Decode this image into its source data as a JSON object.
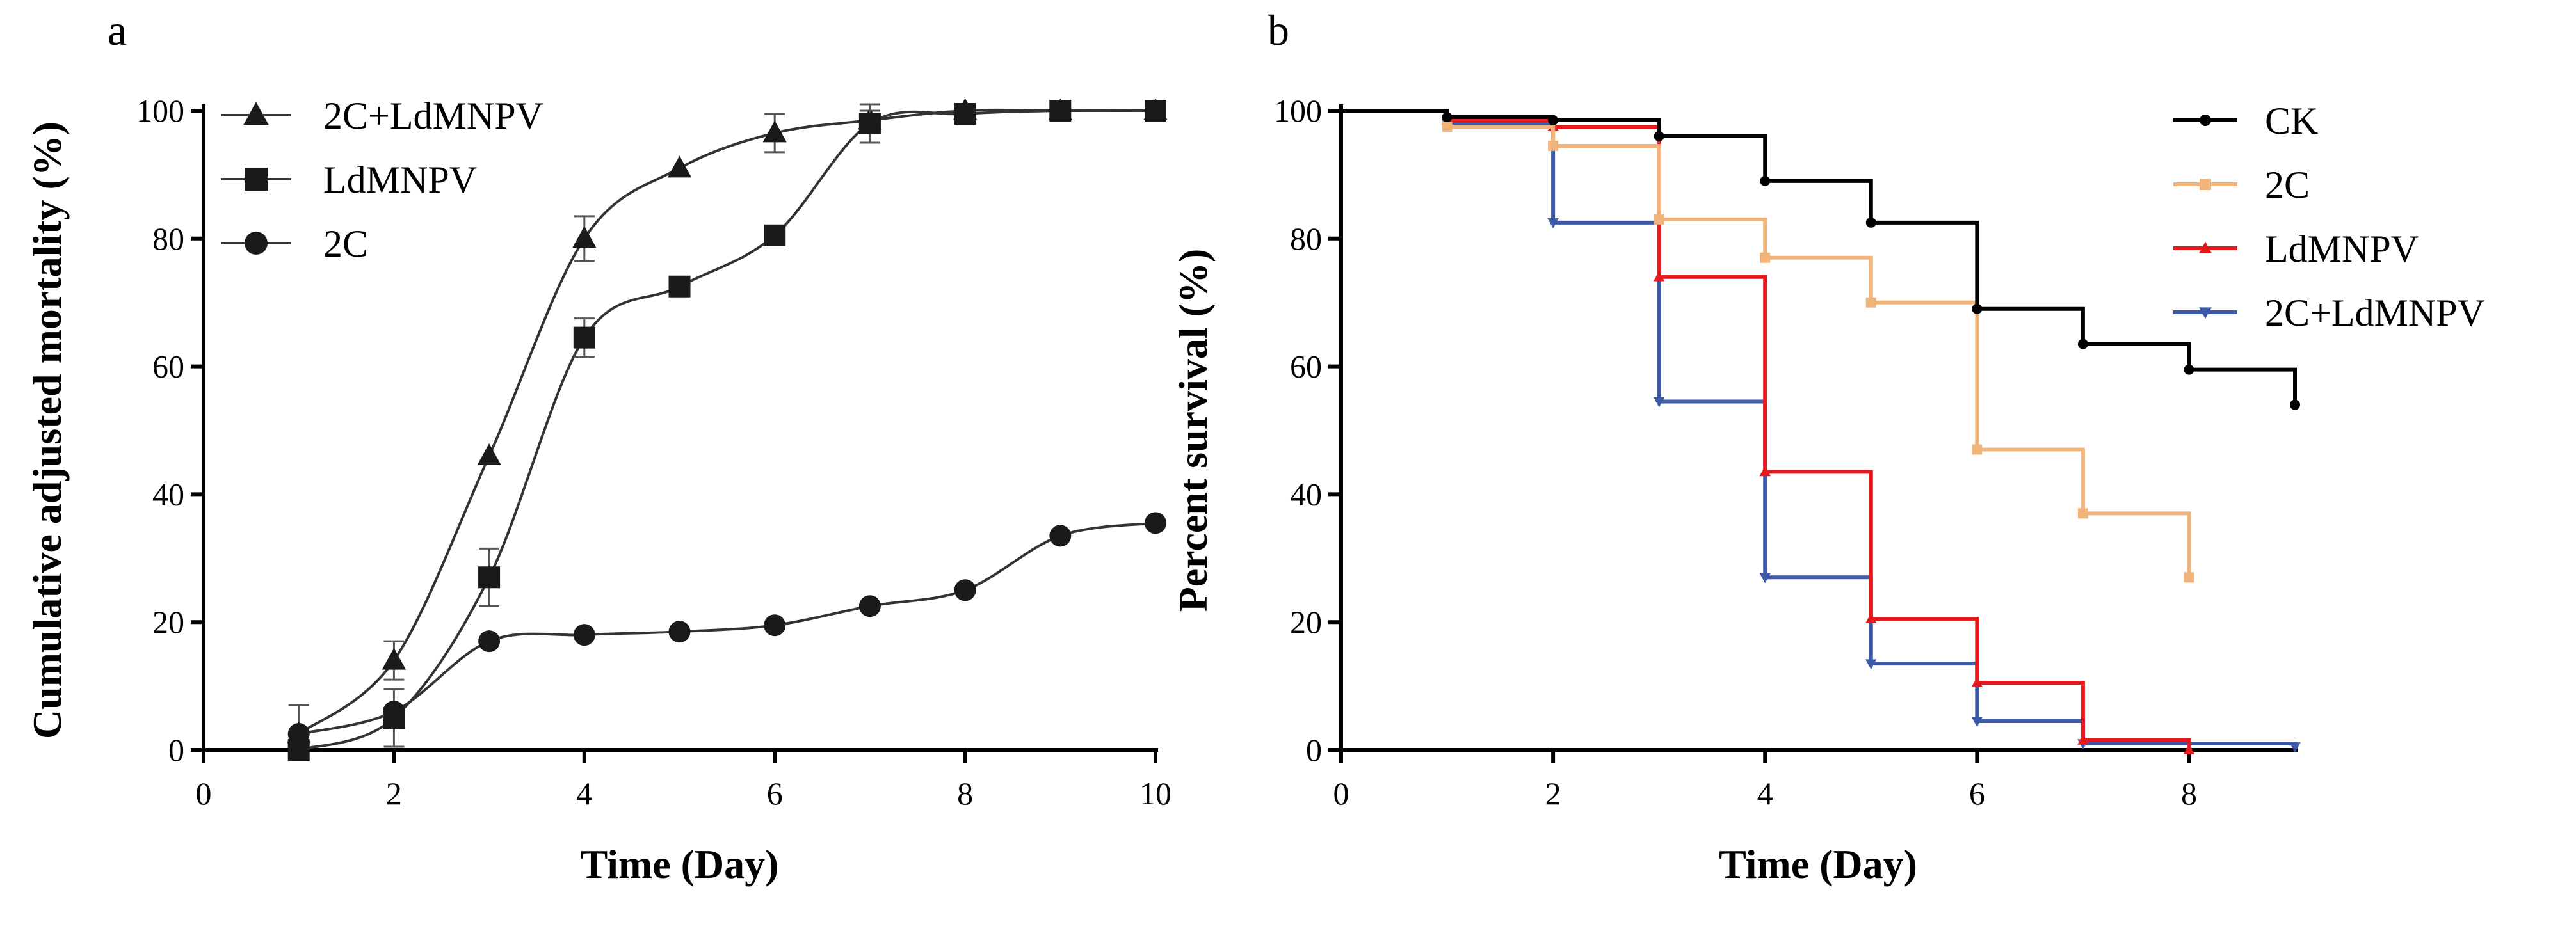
{
  "chart_data": [
    {
      "panel": "a",
      "type": "line",
      "xlabel": "Time (Day)",
      "ylabel": "Cumulative adjusted mortality (%)",
      "xlim": [
        0,
        10
      ],
      "ylim": [
        0,
        100
      ],
      "xticks": [
        0,
        2,
        4,
        6,
        8,
        10
      ],
      "yticks": [
        0,
        20,
        40,
        60,
        80,
        100
      ],
      "legend_position": "top-left",
      "series": [
        {
          "name": "2C+LdMNPV",
          "marker": "triangle",
          "color": "#1a1a1a",
          "x": [
            1,
            2,
            3,
            4,
            5,
            6,
            7,
            8,
            9,
            10
          ],
          "y": [
            2.5,
            14,
            46,
            80,
            91,
            96.5,
            98.5,
            100,
            100,
            100
          ],
          "err": [
            4.5,
            3,
            0,
            3.5,
            0,
            3,
            1.5,
            0,
            0,
            0
          ]
        },
        {
          "name": "LdMNPV",
          "marker": "square",
          "color": "#1a1a1a",
          "x": [
            1,
            2,
            3,
            4,
            5,
            6,
            7,
            8,
            9,
            10
          ],
          "y": [
            0,
            5,
            27,
            64.5,
            72.5,
            80.5,
            98,
            99.5,
            100,
            100
          ],
          "err": [
            0,
            4.5,
            4.5,
            3,
            0,
            0,
            3,
            0,
            0,
            0
          ]
        },
        {
          "name": "2C",
          "marker": "circle",
          "color": "#1a1a1a",
          "x": [
            1,
            2,
            3,
            4,
            5,
            6,
            7,
            8,
            9,
            10
          ],
          "y": [
            2.5,
            6,
            17,
            18,
            18.5,
            19.5,
            22.5,
            25,
            33.5,
            35.5
          ],
          "err": [
            0,
            0,
            0,
            0,
            0,
            0,
            0,
            0,
            0,
            0
          ]
        }
      ]
    },
    {
      "panel": "b",
      "type": "line",
      "subtype": "survival-step",
      "xlabel": "Time (Day)",
      "ylabel": "Percent survival (%)",
      "xlim": [
        0,
        9
      ],
      "ylim": [
        0,
        100
      ],
      "xticks": [
        0,
        2,
        4,
        6,
        8
      ],
      "yticks": [
        0,
        20,
        40,
        60,
        80,
        100
      ],
      "legend_position": "top-right",
      "series": [
        {
          "name": "CK",
          "color": "#000000",
          "marker": "circle",
          "x": [
            0,
            1,
            2,
            3,
            4,
            5,
            6,
            7,
            8,
            9
          ],
          "y": [
            100,
            99,
            98.5,
            96,
            89,
            82.5,
            69,
            63.5,
            59.5,
            54
          ]
        },
        {
          "name": "2C",
          "color": "#f0b47a",
          "marker": "square",
          "x": [
            0,
            1,
            2,
            3,
            4,
            5,
            6,
            7,
            8
          ],
          "y": [
            100,
            97.5,
            94.5,
            83,
            77,
            70,
            47,
            37,
            27
          ]
        },
        {
          "name": "LdMNPV",
          "color": "#e8191c",
          "marker": "triangle",
          "x": [
            0,
            1,
            2,
            3,
            4,
            5,
            6,
            7,
            8
          ],
          "y": [
            100,
            98.5,
            97.5,
            74,
            43.5,
            20.5,
            10.5,
            1.5,
            0
          ]
        },
        {
          "name": "2C+LdMNPV",
          "color": "#3d5aa8",
          "marker": "triangle-down",
          "x": [
            0,
            1,
            2,
            3,
            4,
            5,
            6,
            7,
            9
          ],
          "y": [
            100,
            98,
            82.5,
            54.5,
            27,
            13.5,
            4.5,
            1,
            0.5
          ]
        }
      ]
    }
  ]
}
